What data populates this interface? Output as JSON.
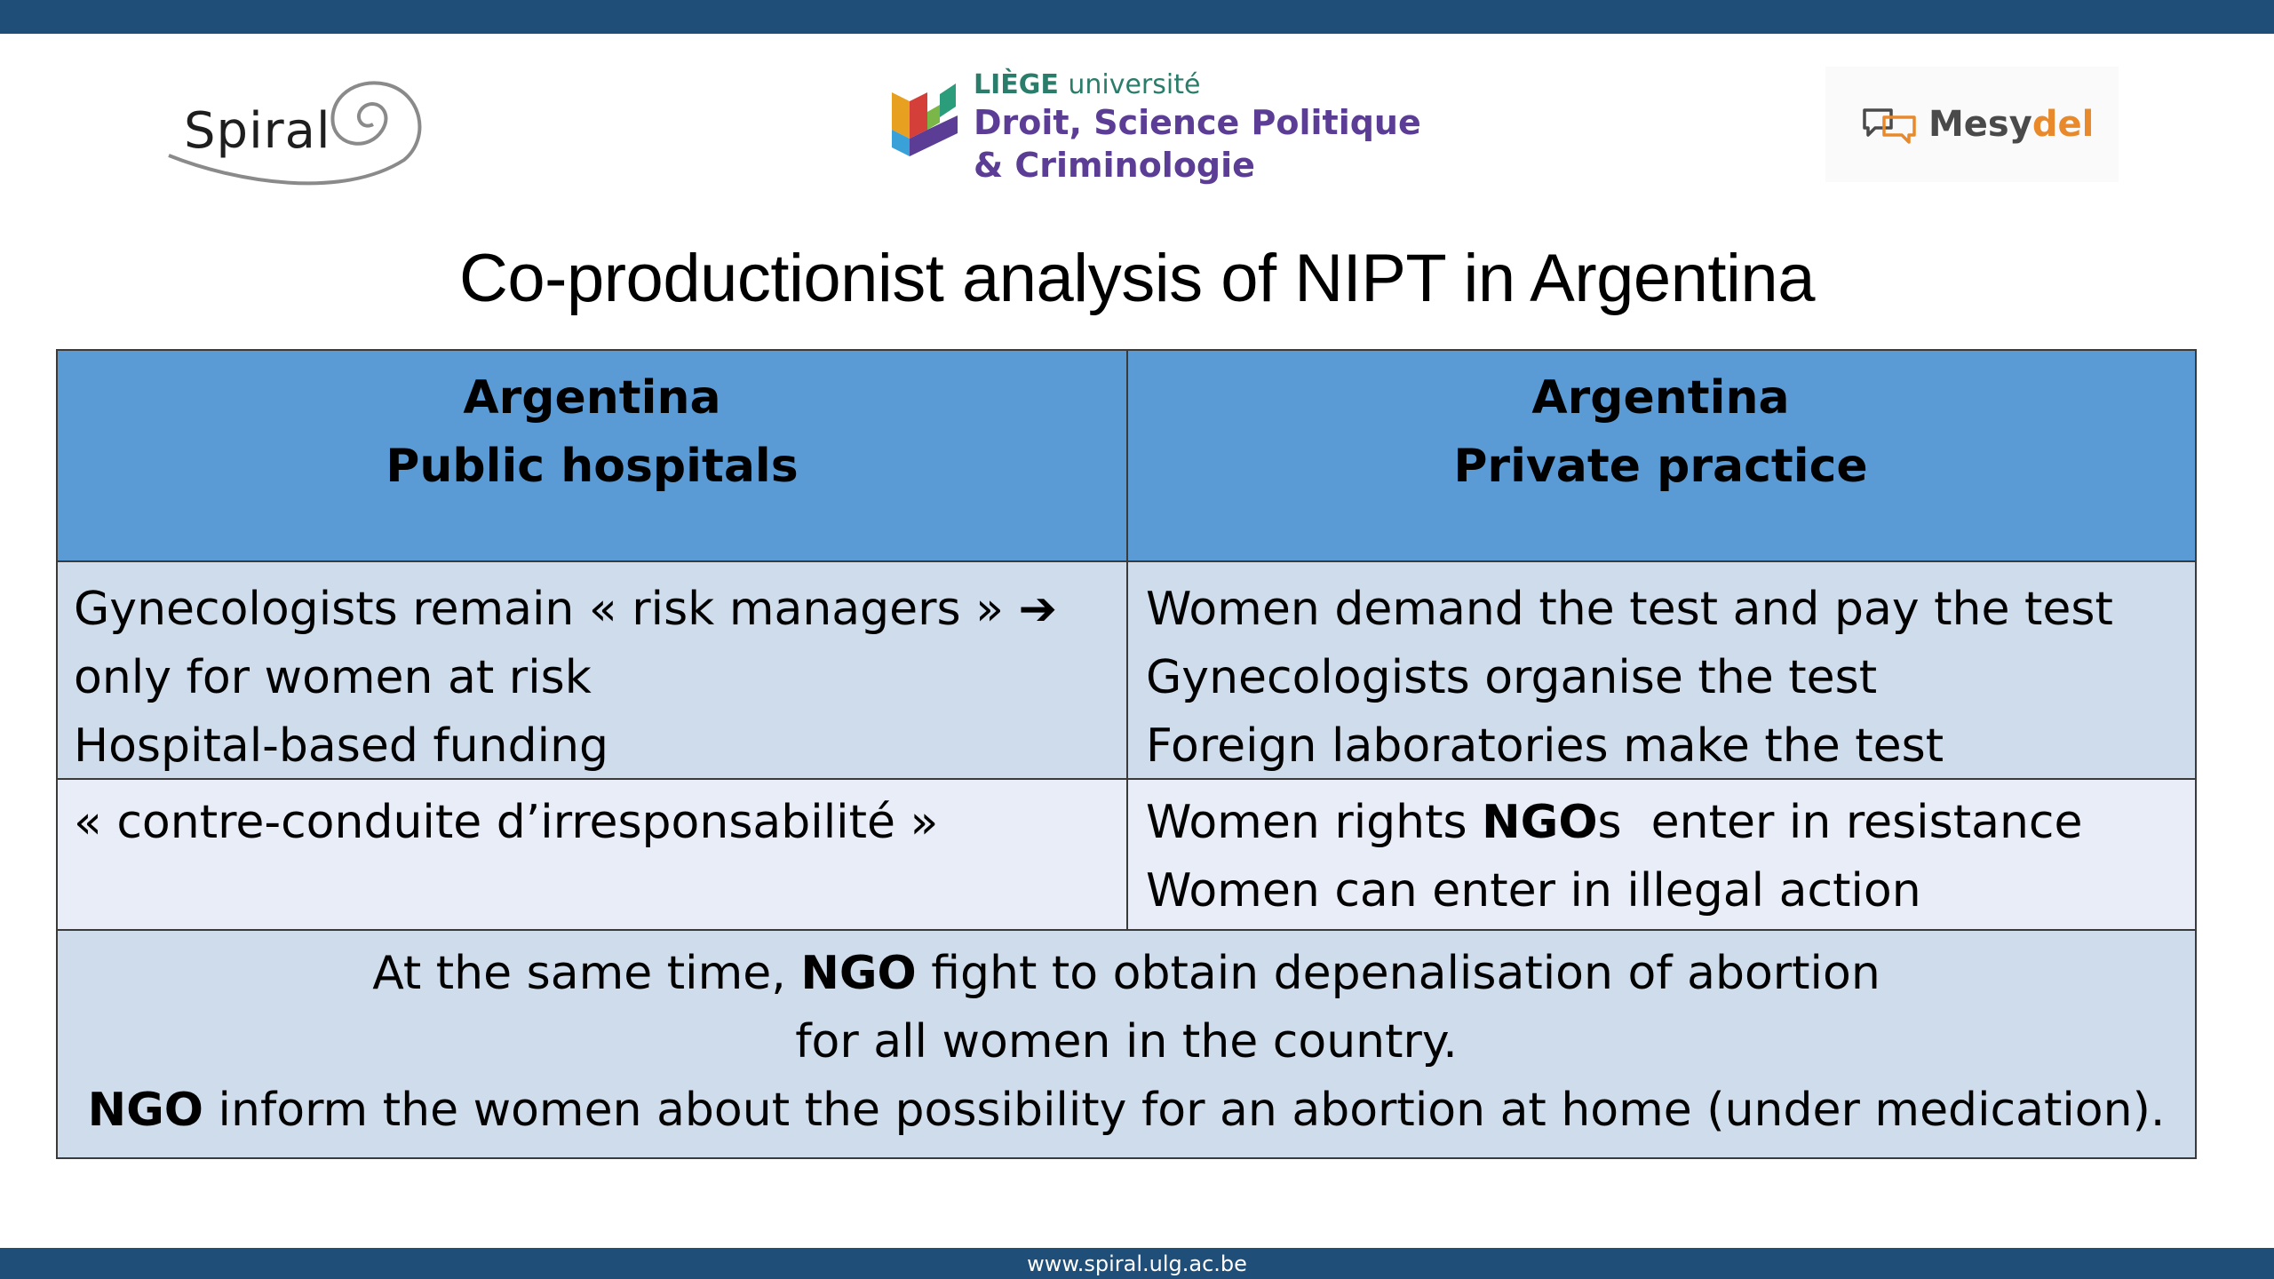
{
  "logos": {
    "spiral": {
      "name": "Spiral"
    },
    "liege": {
      "university_strong": "LIÈGE",
      "university_light": "université",
      "faculty_line1": "Droit, Science Politique",
      "faculty_line2": "& Criminologie"
    },
    "mesydel": {
      "part1": "Mesy",
      "part2": "del"
    }
  },
  "title": "Co-productionist analysis of NIPT in Argentina",
  "table": {
    "headers": [
      {
        "line1": "Argentina",
        "line2": "Public hospitals"
      },
      {
        "line1": "Argentina",
        "line2": "Private practice"
      }
    ],
    "row1": {
      "left": [
        "Gynecologists remain « risk managers » ➔",
        "only for women at risk",
        "Hospital-based funding"
      ],
      "right": [
        "Women demand the test and pay the test",
        "Gynecologists organise the test",
        "Foreign laboratories make the test"
      ]
    },
    "row2": {
      "left": [
        "« contre-conduite d’irresponsabilité »"
      ],
      "right_line1_pre": "Women rights ",
      "right_line1_bold": "NGO",
      "right_line1_post": "s  enter in resistance",
      "right_line2": "Women can enter in illegal action"
    },
    "row3": {
      "line1_pre": "At the same time, ",
      "line1_bold": "NGO",
      "line1_post": " fight to obtain depenalisation of abortion",
      "line2": "for all women in the country.",
      "line3_bold": "NGO",
      "line3_post": " inform the women about the possibility for an abortion at home (under medication)."
    }
  },
  "footer": {
    "url": "www.spiral.ulg.ac.be"
  },
  "colors": {
    "bar": "#1f4e79",
    "header": "#5b9bd5",
    "row_dark": "#cfdcec",
    "row_light": "#e8edf7"
  }
}
